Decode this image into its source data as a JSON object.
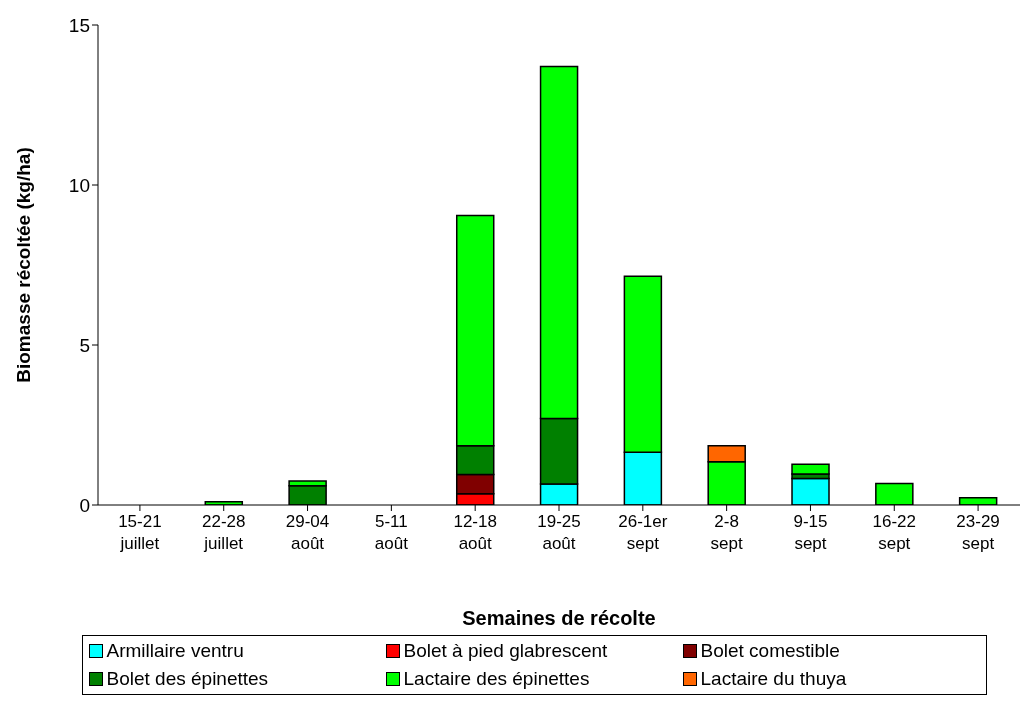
{
  "chart_data": {
    "type": "bar",
    "stacked": true,
    "xlabel": "Semaines de récolte",
    "ylabel": "Biomasse récoltée (kg/ha)",
    "categories": [
      "15-21 juillet",
      "22-28 juillet",
      "29-04 août",
      "5-11 août",
      "12-18 août",
      "19-25 août",
      "26-1er sept",
      "2-8 sept",
      "9-15 sept",
      "16-22 sept",
      "23-29 sept"
    ],
    "series": [
      {
        "name": "Armillaire ventru",
        "color": "#00ffff",
        "values": [
          null,
          null,
          null,
          null,
          null,
          0.66,
          1.65,
          null,
          0.83,
          null,
          null
        ]
      },
      {
        "name": "Bolet à pied glabrescent",
        "color": "#ff0000",
        "values": [
          null,
          null,
          null,
          null,
          0.35,
          null,
          null,
          null,
          null,
          null,
          null
        ]
      },
      {
        "name": "Bolet comestible",
        "color": "#800000",
        "values": [
          null,
          null,
          null,
          null,
          0.6,
          null,
          null,
          null,
          null,
          null,
          null
        ]
      },
      {
        "name": "Bolet des épinettes",
        "color": "#008000",
        "values": [
          null,
          null,
          0.6,
          null,
          0.9,
          2.04,
          null,
          null,
          0.14,
          null,
          null
        ]
      },
      {
        "name": "Lactaire des épinettes",
        "color": "#00ff00",
        "values": [
          null,
          0.1,
          0.15,
          null,
          7.2,
          11.0,
          5.5,
          1.35,
          0.3,
          0.67,
          0.23
        ]
      },
      {
        "name": "Lactaire du thuya",
        "color": "#ff6600",
        "values": [
          null,
          null,
          null,
          null,
          null,
          null,
          null,
          0.5,
          null,
          null,
          null
        ]
      }
    ],
    "ylim": [
      0,
      15
    ],
    "yticks": [
      0,
      5,
      10,
      15
    ],
    "grid": false,
    "legend": "bottom"
  }
}
